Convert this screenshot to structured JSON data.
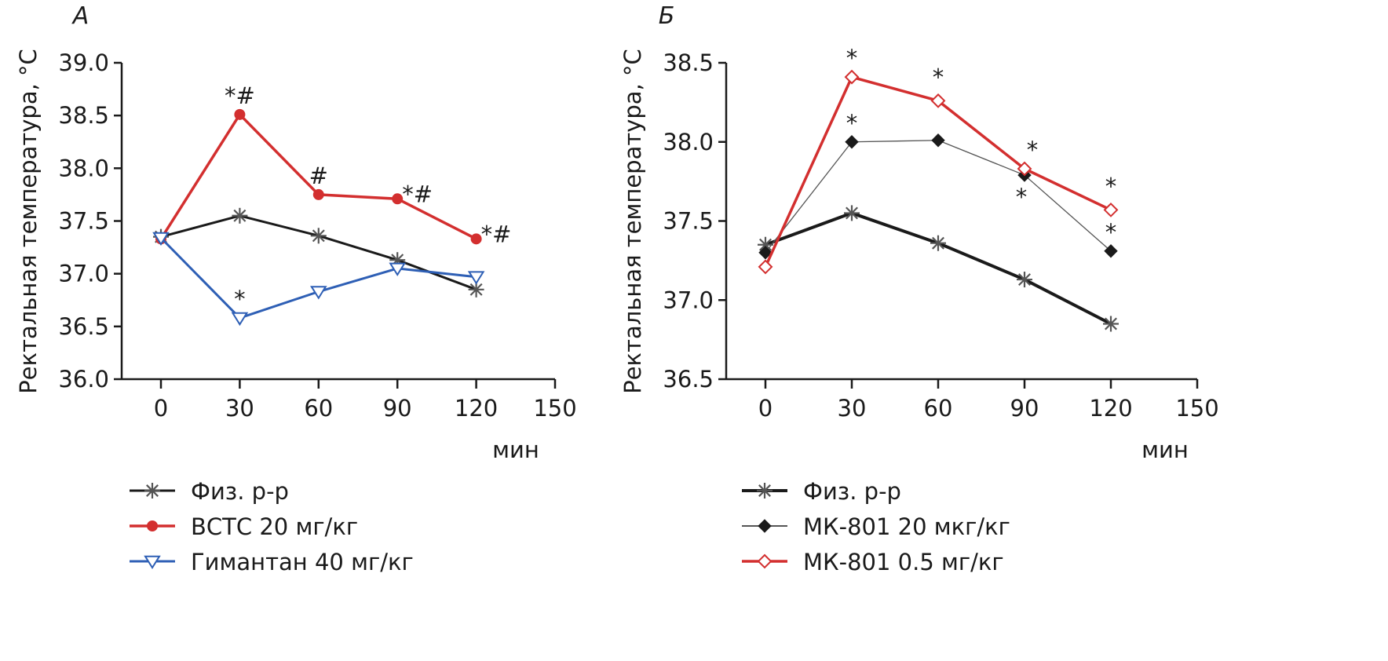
{
  "chart_data": [
    {
      "type": "line",
      "panel_label": "А",
      "ylabel": "Ректальная температура, °С",
      "xlabel": "мин",
      "x": [
        0,
        30,
        60,
        90,
        120
      ],
      "xlim": [
        0,
        150
      ],
      "xticks": [
        "0",
        "30",
        "60",
        "90",
        "120",
        "150"
      ],
      "ylim": [
        36.0,
        39.0
      ],
      "yticks": [
        "36.0",
        "36.5",
        "37.0",
        "37.5",
        "38.0",
        "38.5",
        "39.0"
      ],
      "grid": false,
      "legend_position": "bottom",
      "series": [
        {
          "name": "Физ. р-р",
          "values": [
            37.35,
            37.55,
            37.36,
            37.13,
            36.85
          ],
          "color": "#1a1a1a",
          "marker": "asterisk",
          "annotations": [
            "",
            "",
            "",
            "",
            ""
          ]
        },
        {
          "name": "ВСТС 20 мг/кг",
          "values": [
            37.33,
            38.51,
            37.75,
            37.71,
            37.33
          ],
          "color": "#d32f2f",
          "marker": "circle",
          "annotations": [
            "",
            "*#",
            "#",
            "*#",
            "*#"
          ]
        },
        {
          "name": "Гимантан 40 мг/кг",
          "values": [
            37.34,
            36.58,
            36.83,
            37.05,
            36.97
          ],
          "color": "#2e5fb5",
          "marker": "triangle-down",
          "annotations": [
            "",
            "*",
            "",
            "",
            ""
          ]
        }
      ]
    },
    {
      "type": "line",
      "panel_label": "Б",
      "ylabel": "Ректальная температура, °С",
      "xlabel": "мин",
      "x": [
        0,
        30,
        60,
        90,
        120
      ],
      "xlim": [
        0,
        150
      ],
      "xticks": [
        "0",
        "30",
        "60",
        "90",
        "120",
        "150"
      ],
      "ylim": [
        36.5,
        38.5
      ],
      "yticks": [
        "36.5",
        "37.0",
        "37.5",
        "38.0",
        "38.5"
      ],
      "grid": false,
      "legend_position": "bottom",
      "series": [
        {
          "name": "Физ. р-р",
          "values": [
            37.35,
            37.55,
            37.36,
            37.13,
            36.85
          ],
          "color": "#1a1a1a",
          "marker": "asterisk",
          "annotations": [
            "",
            "",
            "",
            "",
            ""
          ]
        },
        {
          "name": "МК-801 20 мкг/кг",
          "values": [
            37.3,
            38.0,
            38.01,
            37.79,
            37.31
          ],
          "color": "#1a1a1a",
          "marker": "diamond-filled",
          "annotations": [
            "",
            "*",
            "",
            "*",
            "*"
          ]
        },
        {
          "name": "МК-801 0.5 мг/кг",
          "values": [
            37.21,
            38.41,
            38.26,
            37.83,
            37.57
          ],
          "color": "#d32f2f",
          "marker": "diamond-open",
          "annotations": [
            "",
            "*",
            "*",
            "*",
            "*"
          ]
        }
      ]
    }
  ]
}
